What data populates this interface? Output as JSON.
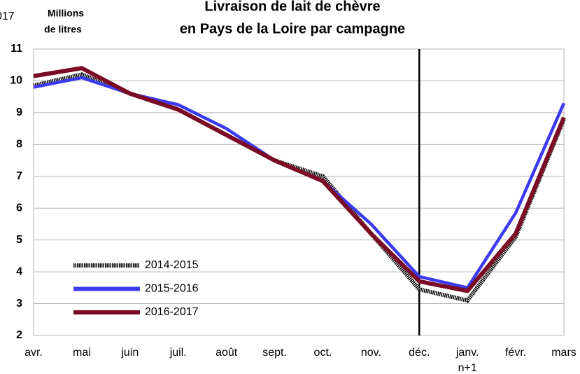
{
  "chart_data": {
    "type": "line",
    "title": [
      "Livraison de lait de chèvre",
      "en Pays de la Loire par campagne"
    ],
    "y_label": [
      "Millions",
      "de litres"
    ],
    "annotation": "017",
    "categories": [
      "avr.",
      "mai",
      "juin",
      "juil.",
      "août",
      "sept.",
      "oct.",
      "nov.",
      "déc.",
      "janv.\nn+1",
      "févr.",
      "mars"
    ],
    "series": [
      {
        "name": "2014-2015",
        "color": "#000000",
        "style": "dotted",
        "values": [
          9.85,
          10.2,
          9.6,
          9.1,
          8.3,
          7.5,
          7.0,
          5.2,
          3.45,
          3.1,
          5.1,
          8.8
        ]
      },
      {
        "name": "2015-2016",
        "color": "#3a3af0",
        "style": "solid",
        "values": [
          9.8,
          10.1,
          9.6,
          9.25,
          8.5,
          7.5,
          6.85,
          5.5,
          3.85,
          3.5,
          5.85,
          9.3
        ]
      },
      {
        "name": "2016-2017",
        "color": "#7b0b25",
        "style": "solid",
        "values": [
          10.15,
          10.4,
          9.6,
          9.1,
          8.3,
          7.5,
          6.85,
          5.2,
          3.7,
          3.4,
          5.2,
          8.85
        ]
      }
    ],
    "marker_category": 8,
    "ylim": [
      2,
      11
    ],
    "yticks": [
      2,
      3,
      4,
      5,
      6,
      7,
      8,
      9,
      10,
      11
    ],
    "grid": true,
    "legend": "lower left"
  }
}
